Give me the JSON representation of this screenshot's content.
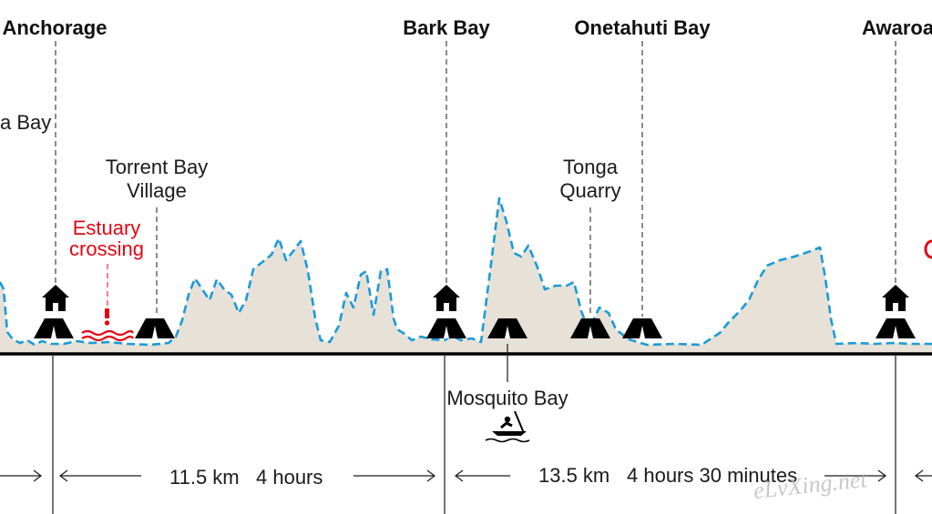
{
  "colors": {
    "terrain_fill": "#e7e1d8",
    "profile_line": "#1b9bd7",
    "ground_line": "#000000",
    "warning": "#e30613",
    "text": "#1a1a1a"
  },
  "top_places": {
    "anchorage": "Anchorage",
    "bark_bay": "Bark Bay",
    "onetahuti_bay": "Onetahuti Bay",
    "awaroa": "Awaroa"
  },
  "mid_places": {
    "partial_bay": "a Bay",
    "torrent_bay_line1": "Torrent Bay",
    "torrent_bay_line2": "Village",
    "tonga_line1": "Tonga",
    "tonga_line2": "Quarry",
    "estuary_line1": "Estuary",
    "estuary_line2": "crossing",
    "mosquito_bay": "Mosquito Bay"
  },
  "segments": {
    "seg1_distance": "11.5 km",
    "seg1_time": "4 hours",
    "seg2_distance": "13.5 km",
    "seg2_time": "4 hours 30 minutes"
  },
  "icons": {
    "hut": "hut-icon",
    "campsite": "campsite-tent-icon",
    "estuary": "estuary-crossing-icon",
    "kayak": "kayak-icon",
    "arrow": "arrow-icon"
  },
  "watermark": "eLvXing.net"
}
